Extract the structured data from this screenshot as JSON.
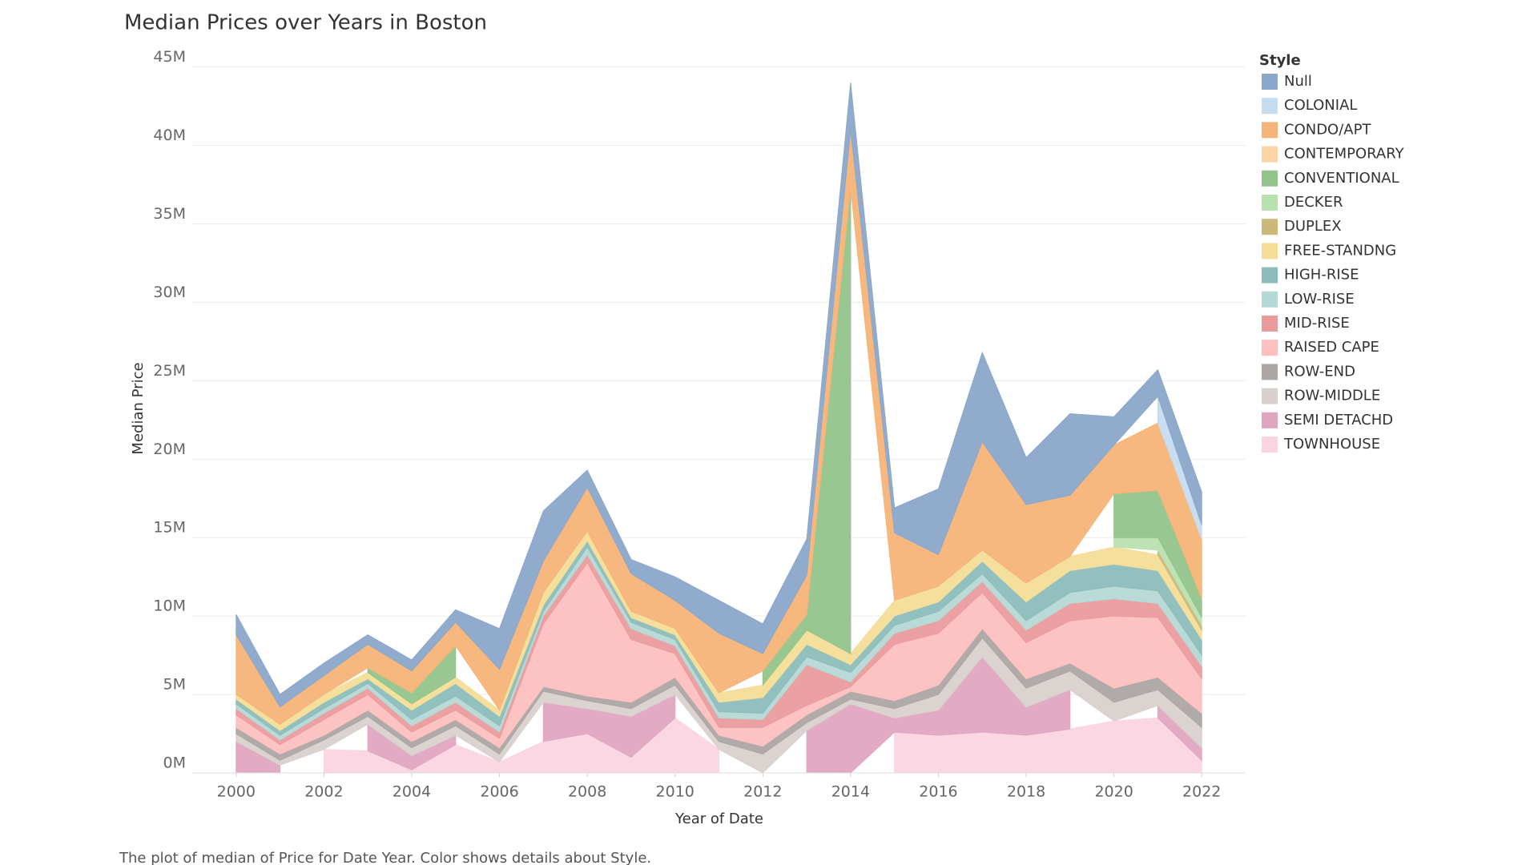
{
  "chart_data": {
    "type": "area",
    "title": "Median Prices over Years in Boston",
    "x_label": "Year of Date",
    "y_label": "Median Price",
    "caption": "The plot of median of Price for Date Year.  Color shows details about Style.",
    "legend_title": "Style",
    "stacked": true,
    "grid": true,
    "legend_position": "right",
    "x": [
      2000,
      2001,
      2002,
      2003,
      2004,
      2005,
      2006,
      2007,
      2008,
      2009,
      2010,
      2011,
      2012,
      2013,
      2014,
      2015,
      2016,
      2017,
      2018,
      2019,
      2020,
      2021,
      2022
    ],
    "xlim": [
      1999,
      2023
    ],
    "xticks": [
      2000,
      2002,
      2004,
      2006,
      2008,
      2010,
      2012,
      2014,
      2016,
      2018,
      2020,
      2022
    ],
    "ylim": [
      0,
      46
    ],
    "yticks": [
      {
        "value": 0,
        "label": "0M"
      },
      {
        "value": 5,
        "label": "5M"
      },
      {
        "value": 10,
        "label": "10M"
      },
      {
        "value": 15,
        "label": "15M"
      },
      {
        "value": 20,
        "label": "20M"
      },
      {
        "value": 25,
        "label": "25M"
      },
      {
        "value": 30,
        "label": "30M"
      },
      {
        "value": 35,
        "label": "35M"
      },
      {
        "value": 40,
        "label": "40M"
      },
      {
        "value": 45,
        "label": "45M"
      }
    ],
    "series": [
      {
        "name": "Null",
        "color": "#8ba7ca",
        "values": [
          1.3,
          0.8,
          0.8,
          0.6,
          0.7,
          0.8,
          2.6,
          3.2,
          1.1,
          0.9,
          1.5,
          2.1,
          1.9,
          2.3,
          3.0,
          1.6,
          4.2,
          5.7,
          3.0,
          5.2,
          1.8,
          1.7,
          2.1
        ]
      },
      {
        "name": "COLONIAL",
        "color": "#c6dcef",
        "values": [
          null,
          null,
          null,
          null,
          null,
          null,
          null,
          null,
          null,
          null,
          null,
          null,
          null,
          null,
          null,
          null,
          null,
          null,
          null,
          null,
          null,
          1.7,
          0.9
        ]
      },
      {
        "name": "CONDO/APT",
        "color": "#f5b478",
        "values": [
          3.8,
          1.1,
          1.2,
          1.5,
          1.4,
          1.5,
          2.6,
          2.0,
          2.8,
          2.4,
          1.8,
          3.8,
          1.1,
          2.5,
          3.7,
          4.3,
          2.0,
          6.9,
          5.0,
          3.9,
          3.1,
          4.3,
          3.8
        ]
      },
      {
        "name": "CONTEMPORARY",
        "color": "#fdd3a8",
        "values": [
          null,
          null,
          null,
          null,
          null,
          null,
          null,
          null,
          null,
          null,
          null,
          null,
          null,
          null,
          null,
          null,
          null,
          null,
          null,
          null,
          null,
          null,
          null
        ]
      },
      {
        "name": "CONVENTIONAL",
        "color": "#93c48b",
        "values": [
          null,
          null,
          null,
          0.3,
          0.7,
          2.0,
          null,
          null,
          null,
          null,
          null,
          null,
          0.9,
          1.0,
          29.7,
          null,
          null,
          null,
          null,
          null,
          2.8,
          3.0,
          1.2
        ]
      },
      {
        "name": "DECKER",
        "color": "#b9e1b0",
        "values": [
          null,
          null,
          null,
          null,
          null,
          null,
          null,
          null,
          null,
          null,
          null,
          null,
          null,
          null,
          null,
          null,
          null,
          null,
          null,
          null,
          0.6,
          0.8,
          0.5
        ]
      },
      {
        "name": "DUPLEX",
        "color": "#cbb97c",
        "values": [
          null,
          null,
          null,
          null,
          null,
          null,
          null,
          null,
          null,
          null,
          null,
          null,
          null,
          null,
          null,
          null,
          null,
          null,
          null,
          null,
          null,
          0.3,
          0.3
        ]
      },
      {
        "name": "FREE-STANDNG",
        "color": "#f4dd97",
        "values": [
          0.3,
          0.4,
          0.5,
          0.4,
          0.4,
          0.4,
          0.4,
          0.8,
          0.6,
          0.4,
          0.4,
          0.6,
          0.8,
          0.9,
          0.7,
          1.0,
          1.0,
          0.7,
          1.2,
          0.9,
          1.1,
          1.0,
          0.6
        ]
      },
      {
        "name": "HIGH-RISE",
        "color": "#8cbdba",
        "values": [
          0.3,
          0.3,
          0.4,
          0.3,
          0.6,
          0.8,
          0.6,
          0.4,
          0.4,
          0.3,
          0.3,
          0.6,
          1.0,
          0.8,
          0.5,
          0.6,
          0.6,
          0.8,
          1.2,
          1.4,
          1.4,
          1.3,
          1.0
        ]
      },
      {
        "name": "LOW-RISE",
        "color": "#b5d8d4",
        "values": [
          0.3,
          0.3,
          0.3,
          0.3,
          0.4,
          0.4,
          0.4,
          0.3,
          0.5,
          0.4,
          0.4,
          0.4,
          0.4,
          0.5,
          0.6,
          0.5,
          0.6,
          0.5,
          0.6,
          0.7,
          0.8,
          0.8,
          0.7
        ]
      },
      {
        "name": "MID-RISE",
        "color": "#ea9b9c",
        "values": [
          0.4,
          0.3,
          0.4,
          0.4,
          0.4,
          0.5,
          0.4,
          0.5,
          0.5,
          0.7,
          0.5,
          0.6,
          0.5,
          2.6,
          0.3,
          0.7,
          0.8,
          0.7,
          0.8,
          1.1,
          1.1,
          0.9,
          0.8
        ]
      },
      {
        "name": "RAISED CAPE",
        "color": "#fdc0bf",
        "values": [
          0.8,
          0.6,
          1.0,
          1.0,
          0.6,
          0.6,
          0.6,
          4.0,
          8.5,
          4.0,
          1.5,
          0.5,
          1.2,
          0.6,
          0.3,
          3.6,
          3.3,
          2.3,
          2.3,
          2.7,
          4.6,
          3.8,
          2.2
        ]
      },
      {
        "name": "ROW-END",
        "color": "#aca6a4",
        "values": [
          0.4,
          0.4,
          0.3,
          0.4,
          0.4,
          0.4,
          0.4,
          0.3,
          0.3,
          0.4,
          0.5,
          0.4,
          0.5,
          0.5,
          0.5,
          0.5,
          0.6,
          0.6,
          0.6,
          0.5,
          0.9,
          0.8,
          0.9
        ]
      },
      {
        "name": "ROW-MIDDLE",
        "color": "#d8d1cd",
        "values": [
          0.5,
          0.3,
          0.6,
          0.5,
          0.5,
          0.6,
          0.5,
          0.7,
          0.5,
          0.5,
          0.6,
          0.5,
          1.2,
          0.5,
          0.3,
          0.6,
          1.0,
          1.2,
          1.2,
          1.2,
          1.2,
          1.0,
          1.3
        ]
      },
      {
        "name": "SEMI DETACHD",
        "color": "#e0a6c0",
        "values": [
          2.0,
          0.5,
          null,
          1.7,
          0.9,
          0.6,
          null,
          2.5,
          1.6,
          2.6,
          1.5,
          null,
          null,
          2.7,
          4.4,
          0.9,
          1.6,
          4.8,
          1.8,
          2.5,
          null,
          0.8,
          0.8
        ]
      },
      {
        "name": "TOWNHOUSE",
        "color": "#fad5e0",
        "values": [
          null,
          null,
          1.5,
          1.4,
          0.2,
          1.8,
          0.7,
          2.0,
          2.5,
          1.0,
          3.5,
          1.5,
          null,
          null,
          null,
          2.6,
          2.4,
          2.6,
          2.4,
          2.8,
          3.3,
          3.5,
          0.8
        ]
      }
    ]
  }
}
